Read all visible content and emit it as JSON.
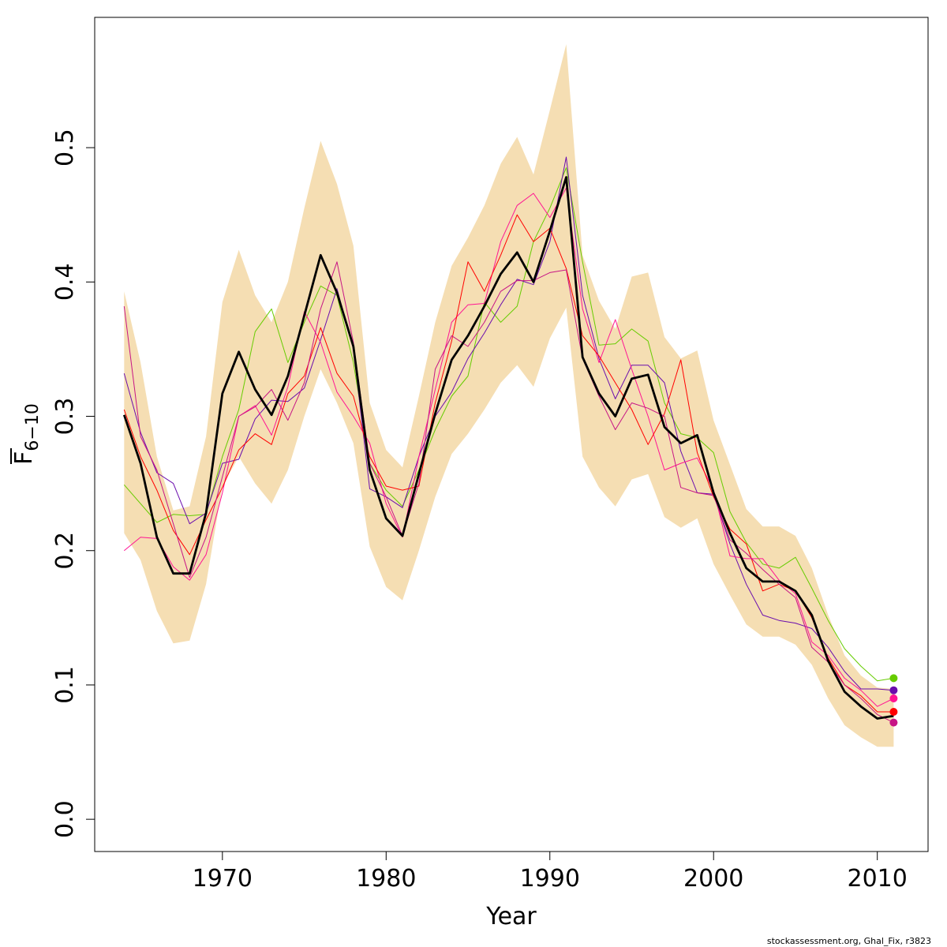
{
  "chart_data": {
    "type": "line",
    "xlabel": "Year",
    "ylabel_main": "F",
    "ylabel_sub": "6−10",
    "xlim": [
      1962.2,
      2013.1
    ],
    "ylim": [
      -0.024,
      0.597
    ],
    "x_ticks": [
      1970,
      1980,
      1990,
      2000,
      2010
    ],
    "y_ticks": [
      0.0,
      0.1,
      0.2,
      0.3,
      0.4,
      0.5
    ],
    "y_tick_labels": [
      "0.0",
      "0.1",
      "0.2",
      "0.3",
      "0.4",
      "0.5"
    ],
    "band_color": "#f5deb3",
    "years": [
      1964,
      1965,
      1966,
      1967,
      1968,
      1969,
      1970,
      1971,
      1972,
      1973,
      1974,
      1975,
      1976,
      1977,
      1978,
      1979,
      1980,
      1981,
      1982,
      1983,
      1984,
      1985,
      1986,
      1987,
      1988,
      1989,
      1990,
      1991,
      1992,
      1993,
      1994,
      1995,
      1996,
      1997,
      1998,
      1999,
      2000,
      2001,
      2002,
      2003,
      2004,
      2005,
      2006,
      2007,
      2008,
      2009,
      2010,
      2011
    ],
    "band_upper": [
      0.393,
      0.34,
      0.27,
      0.23,
      0.233,
      0.285,
      0.385,
      0.424,
      0.39,
      0.37,
      0.4,
      0.455,
      0.505,
      0.473,
      0.427,
      0.31,
      0.275,
      0.262,
      0.315,
      0.37,
      0.412,
      0.433,
      0.457,
      0.488,
      0.508,
      0.48,
      0.528,
      0.577,
      0.42,
      0.386,
      0.365,
      0.404,
      0.407,
      0.359,
      0.343,
      0.349,
      0.297,
      0.264,
      0.231,
      0.218,
      0.218,
      0.211,
      0.187,
      0.152,
      0.122,
      0.107,
      0.098,
      0.097
    ],
    "band_lower": [
      0.213,
      0.193,
      0.155,
      0.131,
      0.133,
      0.175,
      0.248,
      0.27,
      0.25,
      0.235,
      0.26,
      0.3,
      0.335,
      0.31,
      0.28,
      0.203,
      0.173,
      0.163,
      0.2,
      0.24,
      0.272,
      0.287,
      0.305,
      0.325,
      0.338,
      0.322,
      0.358,
      0.381,
      0.27,
      0.247,
      0.233,
      0.253,
      0.257,
      0.225,
      0.217,
      0.224,
      0.19,
      0.167,
      0.145,
      0.136,
      0.136,
      0.13,
      0.115,
      0.09,
      0.07,
      0.061,
      0.054,
      0.054
    ],
    "series": [
      {
        "color": "#000000",
        "width": 2.8,
        "x_start": 1964,
        "values": [
          0.301,
          0.265,
          0.21,
          0.183,
          0.183,
          0.228,
          0.317,
          0.348,
          0.32,
          0.301,
          0.33,
          0.375,
          0.42,
          0.392,
          0.352,
          0.26,
          0.224,
          0.211,
          0.257,
          0.302,
          0.342,
          0.36,
          0.382,
          0.406,
          0.422,
          0.4,
          0.438,
          0.478,
          0.344,
          0.317,
          0.3,
          0.328,
          0.331,
          0.292,
          0.28,
          0.286,
          0.243,
          0.213,
          0.187,
          0.177,
          0.177,
          0.17,
          0.152,
          0.118,
          0.095,
          0.084,
          0.075,
          0.077
        ],
        "end_marker": false
      },
      {
        "color": "#66cc00",
        "width": 1,
        "x_start": 1964,
        "values": [
          0.249,
          0.235,
          0.221,
          0.227,
          0.226,
          0.227,
          0.27,
          0.305,
          0.363,
          0.38,
          0.34,
          0.37,
          0.397,
          0.39,
          0.34,
          0.265,
          0.245,
          0.233,
          0.26,
          0.29,
          0.315,
          0.33,
          0.385,
          0.37,
          0.382,
          0.43,
          0.455,
          0.485,
          0.415,
          0.353,
          0.354,
          0.365,
          0.356,
          0.31,
          0.287,
          0.284,
          0.273,
          0.229,
          0.206,
          0.19,
          0.187,
          0.195,
          0.172,
          0.148,
          0.127,
          0.114,
          0.103,
          0.105
        ],
        "end_marker": true
      },
      {
        "color": "#6a0dad",
        "width": 1,
        "x_start": 1964,
        "values": [
          0.332,
          0.288,
          0.258,
          0.25,
          0.22,
          0.228,
          0.265,
          0.268,
          0.298,
          0.312,
          0.311,
          0.321,
          0.357,
          0.395,
          0.35,
          0.246,
          0.24,
          0.232,
          0.27,
          0.3,
          0.318,
          0.343,
          0.362,
          0.383,
          0.402,
          0.398,
          0.43,
          0.493,
          0.39,
          0.343,
          0.313,
          0.338,
          0.338,
          0.325,
          0.274,
          0.243,
          0.242,
          0.205,
          0.175,
          0.152,
          0.148,
          0.146,
          0.142,
          0.128,
          0.11,
          0.097,
          0.097,
          0.096
        ],
        "end_marker": true
      },
      {
        "color": "#ff1493",
        "width": 1,
        "x_start": 1964,
        "values": [
          0.2,
          0.21,
          0.209,
          0.188,
          0.178,
          0.197,
          0.243,
          0.3,
          0.308,
          0.286,
          0.322,
          0.378,
          0.355,
          0.318,
          0.3,
          0.28,
          0.235,
          0.21,
          0.27,
          0.32,
          0.37,
          0.383,
          0.384,
          0.43,
          0.457,
          0.466,
          0.448,
          0.47,
          0.38,
          0.34,
          0.372,
          0.335,
          0.3,
          0.26,
          0.265,
          0.269,
          0.245,
          0.196,
          0.194,
          0.194,
          0.178,
          0.168,
          0.132,
          0.122,
          0.105,
          0.096,
          0.084,
          0.09
        ],
        "end_marker": true
      },
      {
        "color": "#ff0000",
        "width": 1,
        "x_start": 1964,
        "values": [
          0.305,
          0.27,
          0.245,
          0.215,
          0.197,
          0.223,
          0.247,
          0.275,
          0.287,
          0.279,
          0.317,
          0.33,
          0.366,
          0.332,
          0.315,
          0.27,
          0.248,
          0.245,
          0.248,
          0.31,
          0.356,
          0.415,
          0.393,
          0.42,
          0.45,
          0.43,
          0.44,
          0.41,
          0.36,
          0.345,
          0.325,
          0.305,
          0.279,
          0.302,
          0.342,
          0.273,
          0.24,
          0.216,
          0.205,
          0.17,
          0.175,
          0.17,
          0.15,
          0.12,
          0.1,
          0.092,
          0.08,
          0.08
        ],
        "end_marker": true
      },
      {
        "color": "#c71585",
        "width": 1,
        "x_start": 1964,
        "values": [
          0.382,
          0.285,
          0.26,
          0.22,
          0.18,
          0.21,
          0.255,
          0.3,
          0.307,
          0.32,
          0.297,
          0.325,
          0.38,
          0.415,
          0.355,
          0.265,
          0.24,
          0.211,
          0.25,
          0.335,
          0.36,
          0.352,
          0.37,
          0.393,
          0.401,
          0.401,
          0.407,
          0.409,
          0.343,
          0.315,
          0.29,
          0.31,
          0.306,
          0.3,
          0.247,
          0.243,
          0.241,
          0.208,
          0.198,
          0.186,
          0.175,
          0.165,
          0.128,
          0.117,
          0.1,
          0.09,
          0.078,
          0.072
        ],
        "end_marker": true
      }
    ],
    "footer_text": "stockassessment.org, Ghal_Fix, r3823"
  }
}
